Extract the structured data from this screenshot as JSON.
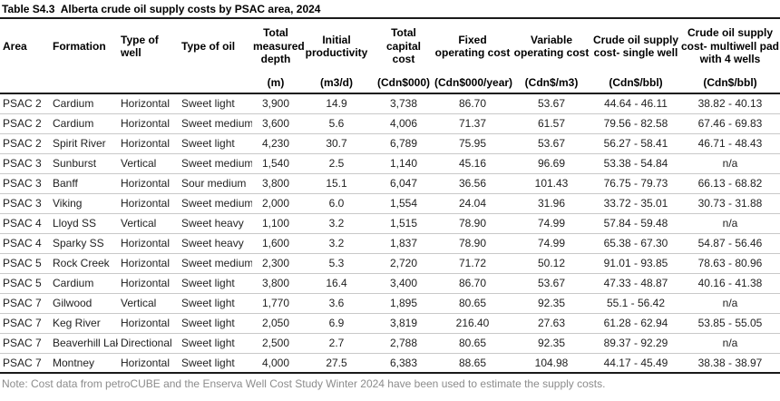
{
  "title": "Table S4.3  Alberta crude oil supply costs by PSAC area, 2024",
  "note": "Note: Cost data from petroCUBE and the Enserva Well Cost Study Winter 2024 have been used to estimate the supply costs.",
  "table": {
    "columns": [
      {
        "key": "area",
        "label": "Area",
        "unit": ""
      },
      {
        "key": "formation",
        "label": "Formation",
        "unit": ""
      },
      {
        "key": "type-of-well",
        "label": "Type of well",
        "unit": ""
      },
      {
        "key": "type-of-oil",
        "label": "Type of oil",
        "unit": ""
      },
      {
        "key": "total-measured-depth",
        "label": "Total measured depth",
        "unit": "(m)"
      },
      {
        "key": "initial-productivity",
        "label": "Initial productivity",
        "unit": "(m3/d)"
      },
      {
        "key": "total-capital-cost",
        "label": "Total capital cost",
        "unit": "(Cdn$000)"
      },
      {
        "key": "fixed-operating-cost",
        "label": "Fixed operating cost",
        "unit": "(Cdn$000/year)"
      },
      {
        "key": "variable-operating-cost",
        "label": "Variable operating cost",
        "unit": "(Cdn$/m3)"
      },
      {
        "key": "supply-cost-single-well",
        "label": "Crude oil supply cost- single well",
        "unit": "(Cdn$/bbl)"
      },
      {
        "key": "supply-cost-multiwell",
        "label": "Crude oil supply cost- multiwell pad with 4 wells",
        "unit": "(Cdn$/bbl)"
      }
    ],
    "rows": [
      [
        "PSAC 2",
        "Cardium",
        "Horizontal",
        "Sweet light",
        "3,900",
        "14.9",
        "3,738",
        "86.70",
        "53.67",
        "44.64 - 46.11",
        "38.82 - 40.13"
      ],
      [
        "PSAC 2",
        "Cardium",
        "Horizontal",
        "Sweet medium",
        "3,600",
        "5.6",
        "4,006",
        "71.37",
        "61.57",
        "79.56 - 82.58",
        "67.46 - 69.83"
      ],
      [
        "PSAC 2",
        "Spirit River",
        "Horizontal",
        "Sweet light",
        "4,230",
        "30.7",
        "6,789",
        "75.95",
        "53.67",
        "56.27 - 58.41",
        "46.71 - 48.43"
      ],
      [
        "PSAC 3",
        "Sunburst",
        "Vertical",
        "Sweet medium",
        "1,540",
        "2.5",
        "1,140",
        "45.16",
        "96.69",
        "53.38 - 54.84",
        "n/a"
      ],
      [
        "PSAC 3",
        "Banff",
        "Horizontal",
        "Sour medium",
        "3,800",
        "15.1",
        "6,047",
        "36.56",
        "101.43",
        "76.75 - 79.73",
        "66.13 - 68.82"
      ],
      [
        "PSAC 3",
        "Viking",
        "Horizontal",
        "Sweet medium",
        "2,000",
        "6.0",
        "1,554",
        "24.04",
        "31.96",
        "33.72 - 35.01",
        "30.73 - 31.88"
      ],
      [
        "PSAC 4",
        "Lloyd SS",
        "Vertical",
        "Sweet heavy",
        "1,100",
        "3.2",
        "1,515",
        "78.90",
        "74.99",
        "57.84 - 59.48",
        "n/a"
      ],
      [
        "PSAC 4",
        "Sparky SS",
        "Horizontal",
        "Sweet heavy",
        "1,600",
        "3.2",
        "1,837",
        "78.90",
        "74.99",
        "65.38 - 67.30",
        "54.87 - 56.46"
      ],
      [
        "PSAC 5",
        "Rock Creek",
        "Horizontal",
        "Sweet medium",
        "2,300",
        "5.3",
        "2,720",
        "71.72",
        "50.12",
        "91.01 - 93.85",
        "78.63 - 80.96"
      ],
      [
        "PSAC 5",
        "Cardium",
        "Horizontal",
        "Sweet light",
        "3,800",
        "16.4",
        "3,400",
        "86.70",
        "53.67",
        "47.33 - 48.87",
        "40.16 - 41.38"
      ],
      [
        "PSAC 7",
        "Gilwood",
        "Vertical",
        "Sweet light",
        "1,770",
        "3.6",
        "1,895",
        "80.65",
        "92.35",
        "55.1 - 56.42",
        "n/a"
      ],
      [
        "PSAC 7",
        "Keg River",
        "Horizontal",
        "Sweet light",
        "2,050",
        "6.9",
        "3,819",
        "216.40",
        "27.63",
        "61.28 - 62.94",
        "53.85 - 55.05"
      ],
      [
        "PSAC 7",
        "Beaverhill Lake",
        "Directional",
        "Sweet light",
        "2,500",
        "2.7",
        "2,788",
        "80.65",
        "92.35",
        "89.37 - 92.29",
        "n/a"
      ],
      [
        "PSAC 7",
        "Montney",
        "Horizontal",
        "Sweet light",
        "4,000",
        "27.5",
        "6,383",
        "88.65",
        "104.98",
        "44.17 - 45.49",
        "38.38 - 38.97"
      ]
    ]
  }
}
